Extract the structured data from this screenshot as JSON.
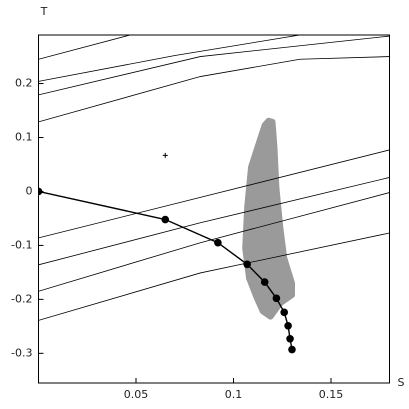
{
  "chart_data": {
    "type": "line",
    "xlabel": "S",
    "ylabel": "T",
    "xlim": [
      0,
      0.18
    ],
    "ylim": [
      -0.355,
      0.29
    ],
    "xticks": [
      0.05,
      0.1,
      0.15
    ],
    "yticks": [
      -0.3,
      -0.2,
      -0.1,
      0,
      0.1,
      0.2
    ],
    "region": {
      "color": "#9a9a9a",
      "x": [
        0.118,
        0.12,
        0.121,
        0.122,
        0.124,
        0.126,
        0.13,
        0.13,
        0.124,
        0.119,
        0.115,
        0.112,
        0.108,
        0.106,
        0.107,
        0.109,
        0.114,
        0.116
      ],
      "values": [
        0.131,
        0.129,
        0.082,
        0.007,
        -0.067,
        -0.123,
        -0.17,
        -0.192,
        -0.207,
        -0.232,
        -0.222,
        -0.198,
        -0.161,
        -0.105,
        -0.03,
        0.045,
        0.101,
        0.123
      ]
    },
    "series": [
      {
        "color": "#000000",
        "markers": true,
        "x": [
          0,
          0.065,
          0.092,
          0.107,
          0.116,
          0.122,
          0.126,
          0.128,
          0.129,
          0.13
        ],
        "values": [
          0,
          -0.052,
          -0.095,
          -0.135,
          -0.168,
          -0.198,
          -0.224,
          -0.249,
          -0.273,
          -0.293
        ]
      },
      {
        "color": "#000000",
        "markers": false,
        "x": [
          0,
          0.047
        ],
        "values": [
          0.245,
          0.29
        ]
      },
      {
        "color": "#000000",
        "markers": false,
        "x": [
          0,
          0.07,
          0.134
        ],
        "values": [
          0.204,
          0.252,
          0.29
        ]
      },
      {
        "color": "#000000",
        "markers": false,
        "x": [
          0,
          0.083,
          0.18
        ],
        "values": [
          0.179,
          0.25,
          0.288
        ]
      },
      {
        "color": "#000000",
        "markers": false,
        "x": [
          0,
          0.083,
          0.134,
          0.18
        ],
        "values": [
          0.129,
          0.213,
          0.245,
          0.25
        ]
      },
      {
        "color": "#000000",
        "markers": false,
        "x": [
          0,
          0.083,
          0.18
        ],
        "values": [
          -0.086,
          -0.011,
          0.077
        ]
      },
      {
        "color": "#000000",
        "markers": false,
        "x": [
          0,
          0.083,
          0.18
        ],
        "values": [
          -0.136,
          -0.058,
          0.026
        ]
      },
      {
        "color": "#000000",
        "markers": false,
        "x": [
          0,
          0.083,
          0.18
        ],
        "values": [
          -0.185,
          -0.095,
          -0.002
        ]
      },
      {
        "color": "#000000",
        "markers": false,
        "x": [
          0,
          0.083,
          0.18
        ],
        "values": [
          -0.239,
          -0.151,
          -0.077
        ]
      }
    ],
    "points": {
      "color": "#000000",
      "x": [
        0.065
      ],
      "values": [
        0.067
      ]
    }
  }
}
